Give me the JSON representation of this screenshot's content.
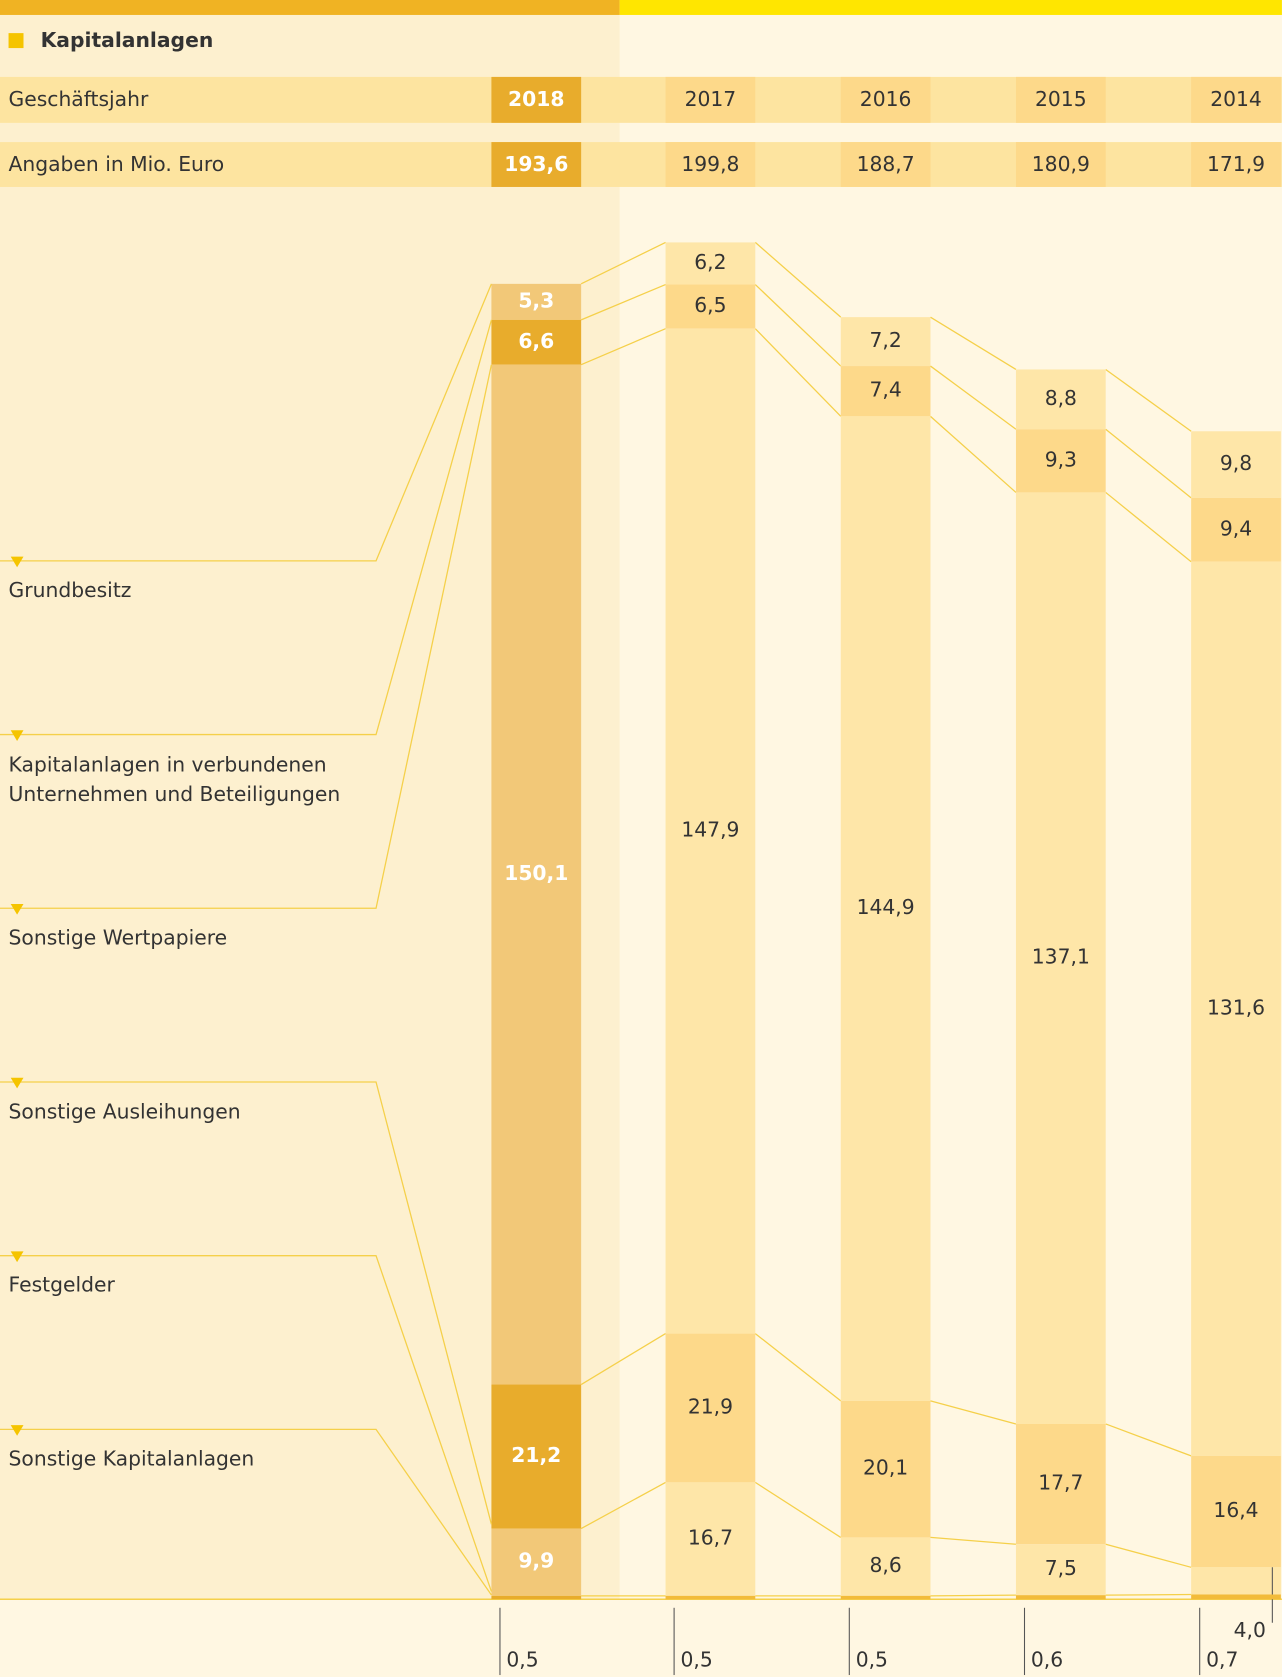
{
  "chart_data": {
    "type": "bar",
    "stacked": true,
    "title": "Kapitalanlagen",
    "category_label": "Geschäftsjahr",
    "total_label": "Angaben in Mio. Euro",
    "categories": [
      "2018",
      "2017",
      "2016",
      "2015",
      "2014"
    ],
    "header_colors": [
      "#e8ac2c",
      "#fdd98a",
      "#fdd98a",
      "#fdd98a",
      "#fdd98a"
    ],
    "totals": [
      193.6,
      199.8,
      188.7,
      180.9,
      171.9
    ],
    "total_labels": [
      "193,6",
      "199,8",
      "188,7",
      "180,9",
      "171,9"
    ],
    "series": [
      {
        "name": "Grundbesitz",
        "values": [
          5.3,
          6.2,
          7.2,
          8.8,
          9.8
        ],
        "value_labels": [
          "5,3",
          "6,2",
          "7,2",
          "8,8",
          "9,8"
        ],
        "colors": [
          "#f2c878",
          "#fee6a8",
          "#fee6a8",
          "#fee6a8",
          "#fee6a8"
        ]
      },
      {
        "name": "Kapitalanlagen in verbundenen Unternehmen und Beteiligungen",
        "values": [
          6.6,
          6.5,
          7.4,
          9.3,
          9.4
        ],
        "value_labels": [
          "6,6",
          "6,5",
          "7,4",
          "9,3",
          "9,4"
        ],
        "colors": [
          "#e8ac2c",
          "#fdd98a",
          "#fdd98a",
          "#fdd98a",
          "#fdd98a"
        ]
      },
      {
        "name": "Sonstige Wertpapiere",
        "values": [
          150.1,
          147.9,
          144.9,
          137.1,
          131.6
        ],
        "value_labels": [
          "150,1",
          "147,9",
          "144,9",
          "137,1",
          "131,6"
        ],
        "colors": [
          "#f2c878",
          "#fee6a8",
          "#fee6a8",
          "#fee6a8",
          "#fee6a8"
        ]
      },
      {
        "name": "Sonstige Ausleihungen",
        "values": [
          21.2,
          21.9,
          20.1,
          17.7,
          16.4
        ],
        "value_labels": [
          "21,2",
          "21,9",
          "20,1",
          "17,7",
          "16,4"
        ],
        "colors": [
          "#e8ac2c",
          "#fdd98a",
          "#fdd98a",
          "#fdd98a",
          "#fdd98a"
        ]
      },
      {
        "name": "Festgelder",
        "values": [
          9.9,
          16.7,
          8.6,
          7.5,
          4.0
        ],
        "value_labels": [
          "9,9",
          "16,7",
          "8,6",
          "7,5",
          "4,0"
        ],
        "colors": [
          "#f2c878",
          "#fee6a8",
          "#fee6a8",
          "#fee6a8",
          "#fee6a8"
        ]
      },
      {
        "name": "Sonstige Kapitalanlagen",
        "values": [
          0.5,
          0.5,
          0.5,
          0.6,
          0.7
        ],
        "value_labels": [
          "0,5",
          "0,5",
          "0,5",
          "0,6",
          "0,7"
        ],
        "colors": [
          "#e8ac2c",
          "#f2bb3a",
          "#f2bb3a",
          "#f2bb3a",
          "#f2bb3a"
        ]
      }
    ]
  }
}
